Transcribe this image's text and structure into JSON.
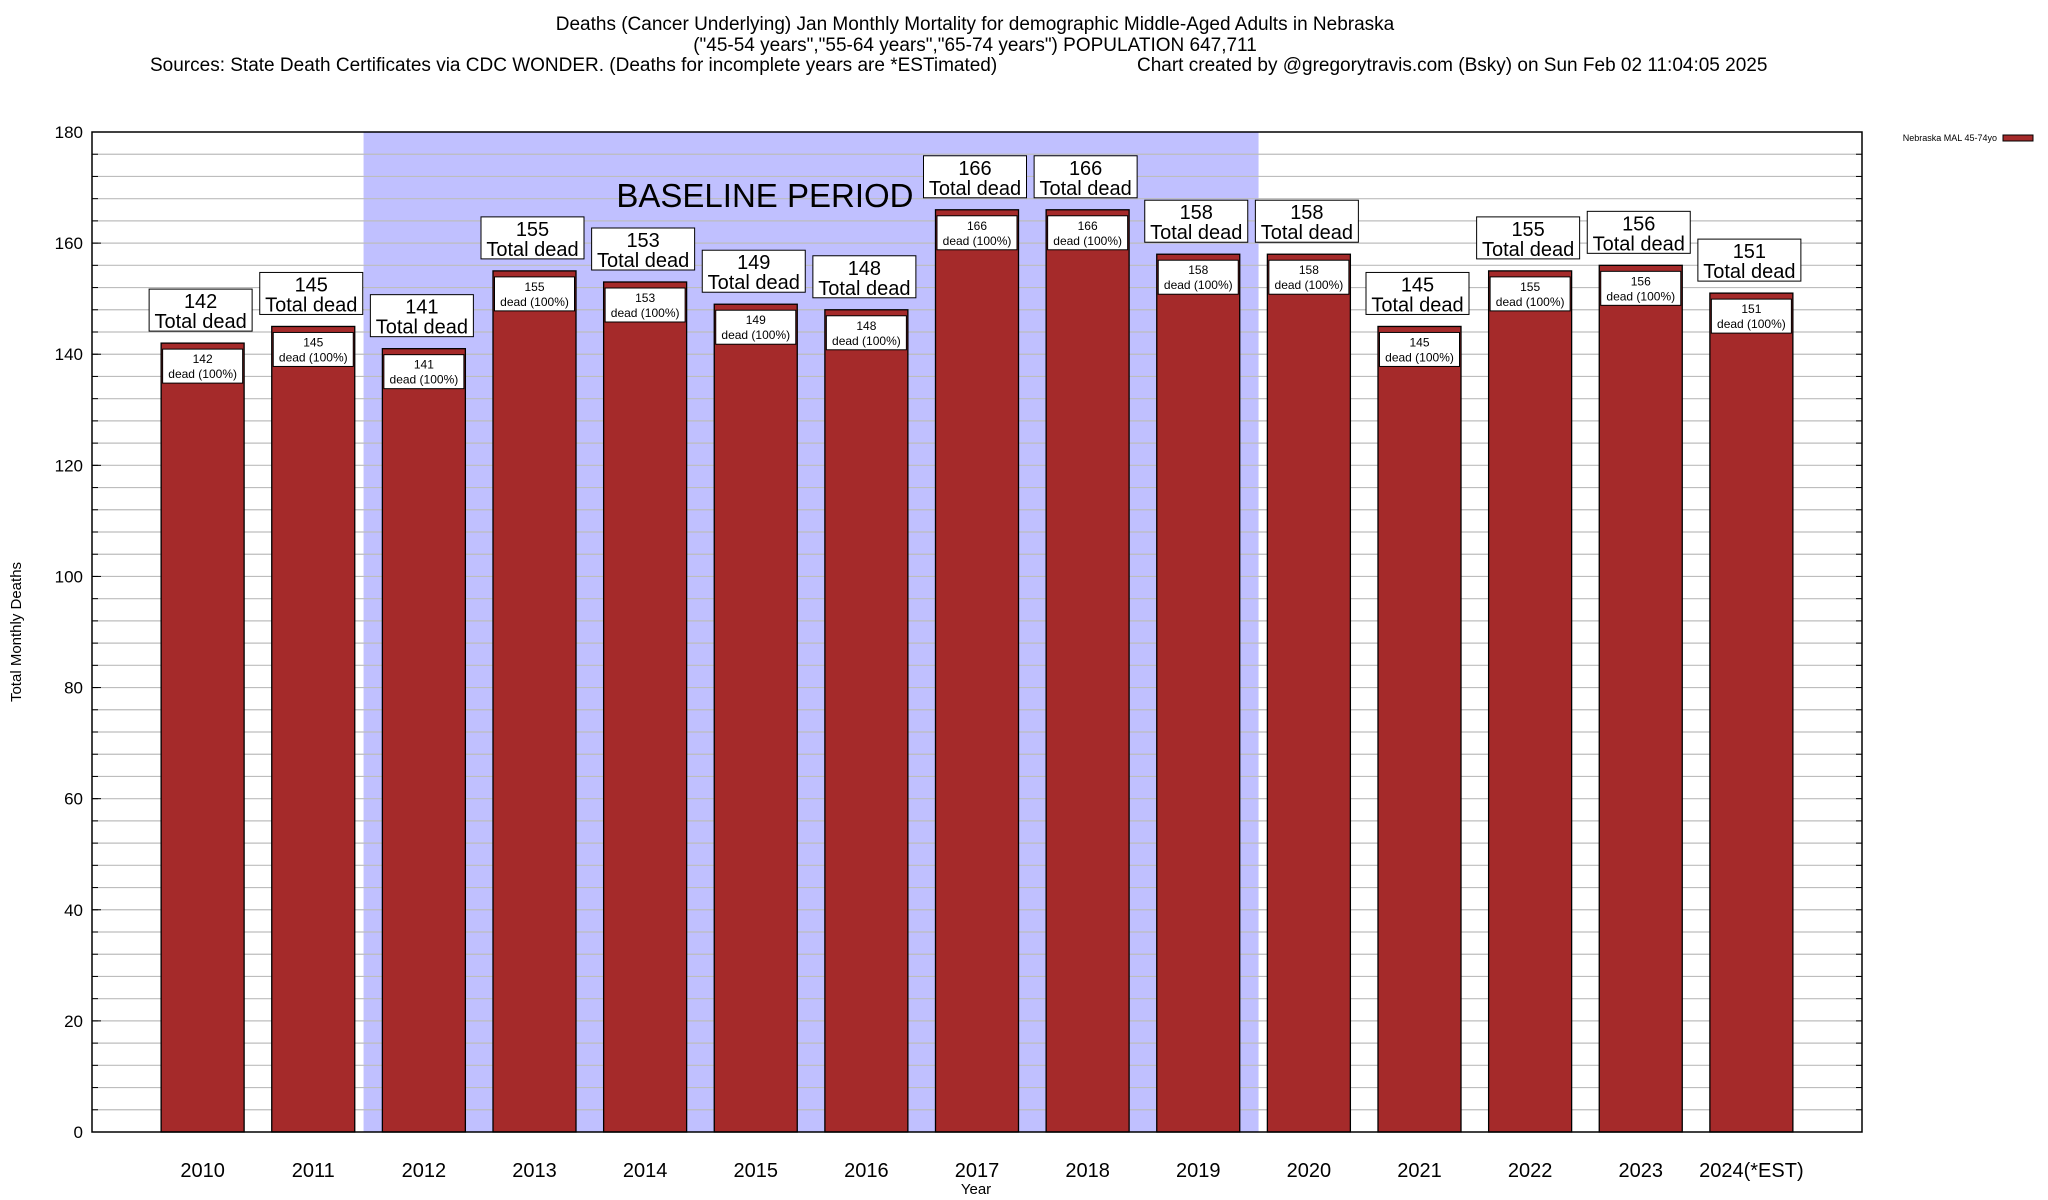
{
  "chart_data": {
    "type": "bar",
    "title_lines": [
      "Deaths (Cancer Underlying) Jan Monthly Mortality for demographic Middle-Aged Adults in Nebraska",
      "(\"45-54 years\",\"55-64 years\",\"65-74 years\") POPULATION 647,711"
    ],
    "source_text": "Sources: State Death Certificates via CDC WONDER. (Deaths for incomplete years are *ESTimated)",
    "credit_text": "Chart created by @gregorytravis.com (Bsky) on Sun Feb 02 11:04:05 2025",
    "xlabel": "Year",
    "ylabel": "Total Monthly Deaths",
    "ylim": [
      0,
      180
    ],
    "yticks": [
      0,
      20,
      40,
      60,
      80,
      100,
      120,
      140,
      160,
      180
    ],
    "minor_tick_step": 4,
    "grid": true,
    "legend": {
      "position": "top-right",
      "label": "Nebraska MAL 45-74yo",
      "color": "#a52a2a"
    },
    "baseline": {
      "label": "BASELINE PERIOD",
      "from": "2012",
      "to": "2019",
      "color": "#c0c0ff"
    },
    "categories": [
      "2010",
      "2011",
      "2012",
      "2013",
      "2014",
      "2015",
      "2016",
      "2017",
      "2018",
      "2019",
      "2020",
      "2021",
      "2022",
      "2023",
      "2024(*EST)"
    ],
    "series": [
      {
        "name": "Nebraska MAL 45-74yo",
        "color": "#a52a2a",
        "values": [
          142,
          145,
          141,
          155,
          153,
          149,
          148,
          166,
          166,
          158,
          158,
          145,
          155,
          156,
          151
        ]
      }
    ],
    "top_label_suffix": "Total dead",
    "inner_label_suffix": "dead (100%)"
  }
}
